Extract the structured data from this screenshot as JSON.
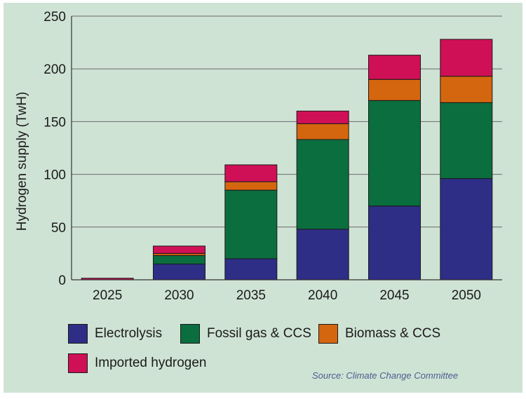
{
  "chart_data": {
    "type": "bar",
    "stacked": true,
    "categories": [
      "2025",
      "2030",
      "2035",
      "2040",
      "2045",
      "2050"
    ],
    "ylabel": "Hydrogen supply (TwH)",
    "ylim": [
      0,
      250
    ],
    "yticks": [
      0,
      50,
      100,
      150,
      200,
      250
    ],
    "grid": true,
    "series": [
      {
        "name": "Electrolysis",
        "color": "#2e2e87",
        "values": [
          0,
          15,
          20,
          48,
          70,
          96
        ]
      },
      {
        "name": "Fossil gas & CCS",
        "color": "#0b6e3f",
        "values": [
          0,
          8,
          65,
          85,
          100,
          72
        ]
      },
      {
        "name": "Biomass & CCS",
        "color": "#d4660f",
        "values": [
          0,
          2,
          8,
          15,
          20,
          25
        ]
      },
      {
        "name": "Imported hydrogen",
        "color": "#cf1056",
        "values": [
          1.5,
          7,
          16,
          12,
          23,
          35
        ]
      }
    ],
    "source": "Source: Climate Change Committee"
  }
}
